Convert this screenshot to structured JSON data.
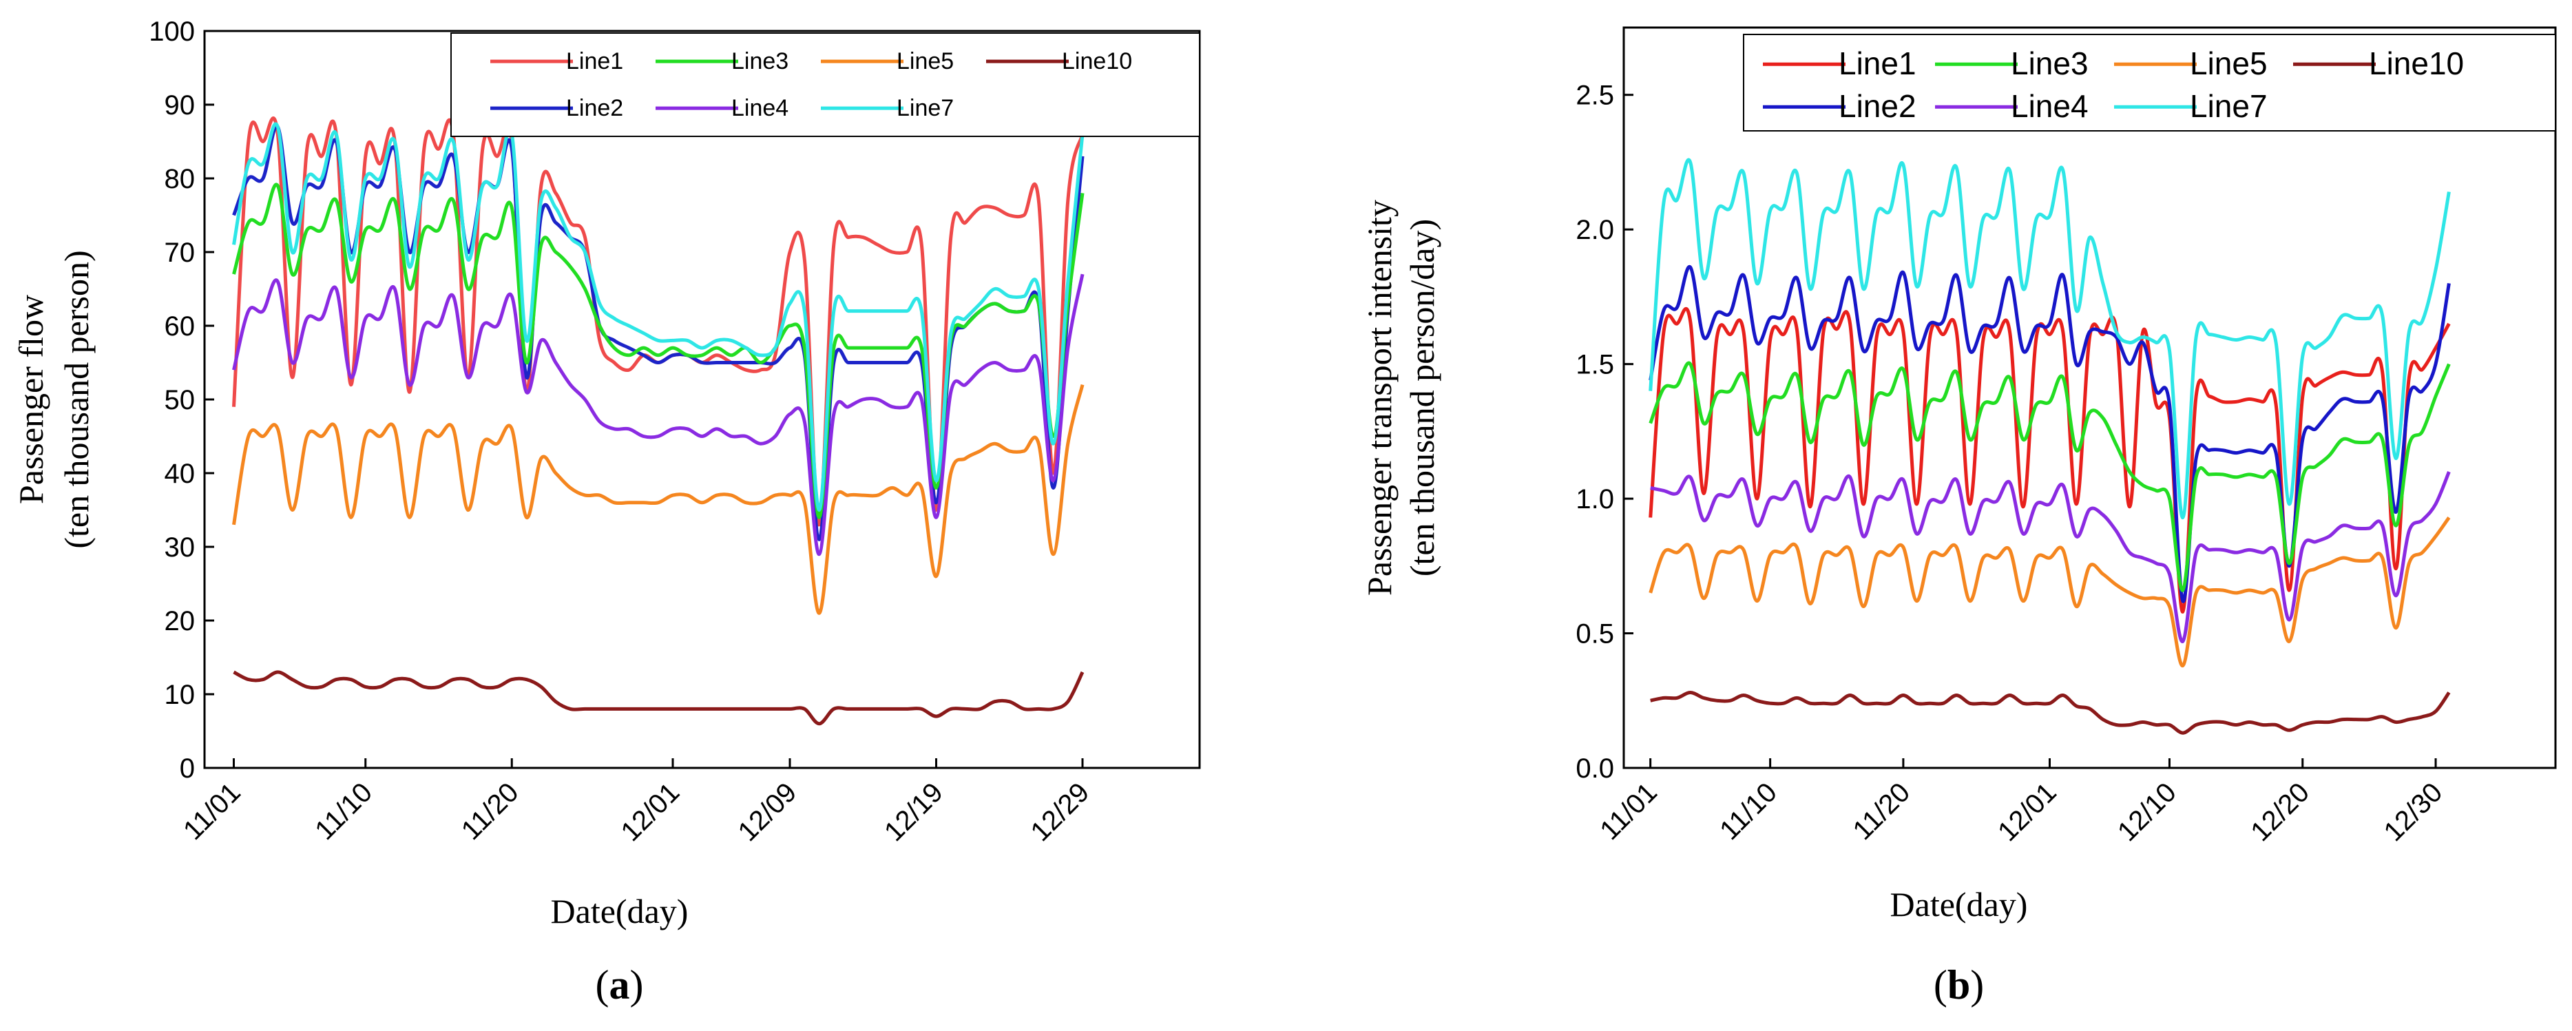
{
  "chart_data": [
    {
      "panel": "a",
      "panel_label": "(a)",
      "type": "line",
      "title": "",
      "xlabel": "Date(day)",
      "ylabel": [
        "Passenger flow",
        "(ten thousand person)"
      ],
      "ylim": [
        0,
        100
      ],
      "yticks": [
        0,
        10,
        20,
        30,
        40,
        50,
        60,
        70,
        80,
        90,
        100
      ],
      "xlim": [
        -2,
        66
      ],
      "xticks": [
        {
          "day": 0,
          "label": "11/01"
        },
        {
          "day": 9,
          "label": "11/10"
        },
        {
          "day": 19,
          "label": "11/20"
        },
        {
          "day": 30,
          "label": "12/01"
        },
        {
          "day": 38,
          "label": "12/09"
        },
        {
          "day": 48,
          "label": "12/19"
        },
        {
          "day": 58,
          "label": "12/29"
        }
      ],
      "legend_position": "top-right",
      "x": [
        0,
        1,
        2,
        3,
        4,
        5,
        6,
        7,
        8,
        9,
        10,
        11,
        12,
        13,
        14,
        15,
        16,
        17,
        18,
        19,
        20,
        21,
        22,
        23,
        24,
        25,
        26,
        27,
        28,
        29,
        30,
        31,
        32,
        33,
        34,
        35,
        36,
        37,
        38,
        39,
        40,
        41,
        42,
        43,
        44,
        45,
        46,
        47,
        48,
        49,
        50,
        51,
        52,
        53,
        54,
        55,
        56,
        57,
        58
      ],
      "series": [
        {
          "name": "Line1",
          "color": "#ef4a4a",
          "values": [
            49,
            85,
            85,
            86,
            53,
            84,
            83,
            86,
            52,
            83,
            82,
            85,
            51,
            84,
            84,
            86,
            53,
            84,
            83,
            85,
            51,
            79,
            78,
            74,
            72,
            58,
            55,
            54,
            56,
            55,
            56,
            56,
            55,
            56,
            55,
            54,
            54,
            56,
            70,
            69,
            33,
            71,
            72,
            72,
            71,
            70,
            70,
            71,
            35,
            72,
            74,
            76,
            76,
            75,
            75,
            77,
            40,
            77,
            86
          ]
        },
        {
          "name": "Line2",
          "color": "#1c24c8",
          "values": [
            75,
            80,
            80,
            87,
            74,
            79,
            79,
            85,
            70,
            79,
            79,
            84,
            70,
            79,
            79,
            83,
            70,
            79,
            79,
            84,
            53,
            75,
            74,
            72,
            70,
            60,
            58,
            57,
            56,
            55,
            56,
            56,
            55,
            55,
            55,
            55,
            55,
            55,
            57,
            56,
            31,
            55,
            55,
            55,
            55,
            55,
            55,
            55,
            36,
            57,
            60,
            62,
            63,
            62,
            62,
            63,
            38,
            62,
            83
          ]
        },
        {
          "name": "Line3",
          "color": "#22dd22",
          "values": [
            67,
            74,
            74,
            79,
            67,
            73,
            73,
            77,
            66,
            73,
            73,
            77,
            65,
            73,
            73,
            77,
            65,
            72,
            72,
            76,
            55,
            71,
            70,
            68,
            65,
            60,
            57,
            56,
            57,
            56,
            57,
            56,
            56,
            57,
            56,
            57,
            55,
            57,
            60,
            57,
            34,
            57,
            57,
            57,
            57,
            57,
            57,
            57,
            38,
            58,
            60,
            62,
            63,
            62,
            62,
            63,
            45,
            63,
            78
          ]
        },
        {
          "name": "Line4",
          "color": "#8a2be2",
          "values": [
            54,
            62,
            62,
            66,
            55,
            61,
            61,
            65,
            53,
            61,
            61,
            65,
            52,
            60,
            60,
            64,
            53,
            60,
            60,
            64,
            51,
            58,
            55,
            52,
            50,
            47,
            46,
            46,
            45,
            45,
            46,
            46,
            45,
            46,
            45,
            45,
            44,
            45,
            48,
            47,
            29,
            48,
            49,
            50,
            50,
            49,
            49,
            50,
            34,
            51,
            52,
            54,
            55,
            54,
            54,
            55,
            39,
            57,
            67
          ]
        },
        {
          "name": "Line5",
          "color": "#f5861f",
          "values": [
            33,
            45,
            45,
            46,
            35,
            45,
            45,
            46,
            34,
            45,
            45,
            46,
            34,
            45,
            45,
            46,
            35,
            44,
            44,
            46,
            34,
            42,
            40,
            38,
            37,
            37,
            36,
            36,
            36,
            36,
            37,
            37,
            36,
            37,
            37,
            36,
            36,
            37,
            37,
            36,
            21,
            36,
            37,
            37,
            37,
            38,
            37,
            38,
            26,
            40,
            42,
            43,
            44,
            43,
            43,
            44,
            29,
            44,
            52
          ]
        },
        {
          "name": "Line7",
          "color": "#2ee6e6",
          "values": [
            71,
            82,
            82,
            87,
            70,
            80,
            80,
            86,
            69,
            80,
            80,
            85,
            68,
            80,
            80,
            85,
            69,
            79,
            79,
            86,
            58,
            77,
            76,
            72,
            70,
            63,
            61,
            60,
            59,
            58,
            58,
            58,
            57,
            58,
            58,
            57,
            56,
            57,
            63,
            62,
            35,
            62,
            62,
            62,
            62,
            62,
            62,
            62,
            39,
            59,
            61,
            63,
            65,
            64,
            64,
            65,
            44,
            66,
            86
          ]
        },
        {
          "name": "Line10",
          "color": "#8b1a1a",
          "values": [
            13,
            12,
            12,
            13,
            12,
            11,
            11,
            12,
            12,
            11,
            11,
            12,
            12,
            11,
            11,
            12,
            12,
            11,
            11,
            12,
            12,
            11,
            9,
            8,
            8,
            8,
            8,
            8,
            8,
            8,
            8,
            8,
            8,
            8,
            8,
            8,
            8,
            8,
            8,
            8,
            6,
            8,
            8,
            8,
            8,
            8,
            8,
            8,
            7,
            8,
            8,
            8,
            9,
            9,
            8,
            8,
            8,
            9,
            13
          ]
        }
      ],
      "legend_rows": [
        [
          "Line1",
          "Line3",
          "Line5",
          "Line10"
        ],
        [
          "Line2",
          "Line4",
          "Line7"
        ]
      ]
    },
    {
      "panel": "b",
      "panel_label": "(b)",
      "type": "line",
      "title": "",
      "xlabel": "Date(day)",
      "ylabel": [
        "Passenger transport intensity",
        "(ten thousand person/day)"
      ],
      "ylim": [
        0.0,
        2.75
      ],
      "yticks": [
        0.0,
        0.5,
        1.0,
        1.5,
        2.0,
        2.5
      ],
      "xlim": [
        -2,
        68
      ],
      "xticks": [
        {
          "day": 0,
          "label": "11/01"
        },
        {
          "day": 9,
          "label": "11/10"
        },
        {
          "day": 19,
          "label": "11/20"
        },
        {
          "day": 30,
          "label": "12/01"
        },
        {
          "day": 39,
          "label": "12/10"
        },
        {
          "day": 49,
          "label": "12/20"
        },
        {
          "day": 59,
          "label": "12/30"
        }
      ],
      "legend_position": "top-right",
      "x": [
        0,
        1,
        2,
        3,
        4,
        5,
        6,
        7,
        8,
        9,
        10,
        11,
        12,
        13,
        14,
        15,
        16,
        17,
        18,
        19,
        20,
        21,
        22,
        23,
        24,
        25,
        26,
        27,
        28,
        29,
        30,
        31,
        32,
        33,
        34,
        35,
        36,
        37,
        38,
        39,
        40,
        41,
        42,
        43,
        44,
        45,
        46,
        47,
        48,
        49,
        50,
        51,
        52,
        53,
        54,
        55,
        56,
        57,
        58,
        59,
        60
      ],
      "series": [
        {
          "name": "Line1",
          "color": "#e8201c",
          "values": [
            0.93,
            1.62,
            1.65,
            1.66,
            1.02,
            1.6,
            1.61,
            1.62,
            1.0,
            1.59,
            1.61,
            1.63,
            0.97,
            1.62,
            1.63,
            1.65,
            0.98,
            1.6,
            1.61,
            1.62,
            0.98,
            1.6,
            1.61,
            1.62,
            0.98,
            1.59,
            1.6,
            1.62,
            0.97,
            1.6,
            1.61,
            1.62,
            0.98,
            1.6,
            1.61,
            1.63,
            0.97,
            1.62,
            1.35,
            1.3,
            0.58,
            1.38,
            1.38,
            1.36,
            1.36,
            1.37,
            1.36,
            1.35,
            0.66,
            1.38,
            1.42,
            1.45,
            1.47,
            1.46,
            1.46,
            1.47,
            0.74,
            1.45,
            1.48,
            1.56,
            1.65
          ]
        },
        {
          "name": "Line2",
          "color": "#1616c8",
          "values": [
            1.44,
            1.7,
            1.71,
            1.86,
            1.6,
            1.69,
            1.69,
            1.83,
            1.58,
            1.67,
            1.68,
            1.82,
            1.56,
            1.66,
            1.67,
            1.82,
            1.55,
            1.66,
            1.67,
            1.84,
            1.56,
            1.65,
            1.66,
            1.83,
            1.55,
            1.64,
            1.65,
            1.82,
            1.55,
            1.64,
            1.65,
            1.83,
            1.5,
            1.62,
            1.62,
            1.6,
            1.5,
            1.58,
            1.4,
            1.35,
            0.62,
            1.15,
            1.18,
            1.18,
            1.17,
            1.18,
            1.17,
            1.17,
            0.75,
            1.22,
            1.26,
            1.32,
            1.37,
            1.36,
            1.36,
            1.37,
            0.95,
            1.38,
            1.4,
            1.5,
            1.8
          ]
        },
        {
          "name": "Line3",
          "color": "#22dd22",
          "values": [
            1.28,
            1.41,
            1.42,
            1.5,
            1.28,
            1.39,
            1.4,
            1.46,
            1.24,
            1.37,
            1.38,
            1.46,
            1.21,
            1.37,
            1.38,
            1.47,
            1.2,
            1.38,
            1.39,
            1.48,
            1.22,
            1.36,
            1.37,
            1.47,
            1.22,
            1.35,
            1.36,
            1.45,
            1.22,
            1.35,
            1.36,
            1.45,
            1.18,
            1.32,
            1.3,
            1.2,
            1.1,
            1.05,
            1.03,
            1.0,
            0.66,
            1.08,
            1.09,
            1.09,
            1.08,
            1.09,
            1.08,
            1.08,
            0.76,
            1.08,
            1.12,
            1.16,
            1.22,
            1.21,
            1.21,
            1.22,
            0.9,
            1.2,
            1.25,
            1.38,
            1.5
          ]
        },
        {
          "name": "Line4",
          "color": "#8a2be2",
          "values": [
            1.04,
            1.03,
            1.02,
            1.08,
            0.92,
            1.01,
            1.01,
            1.07,
            0.9,
            1.0,
            1.0,
            1.06,
            0.88,
            1.0,
            1.0,
            1.08,
            0.86,
            1.0,
            1.0,
            1.07,
            0.87,
            0.99,
            0.99,
            1.07,
            0.87,
            0.99,
            0.99,
            1.06,
            0.87,
            0.98,
            0.98,
            1.05,
            0.86,
            0.96,
            0.94,
            0.88,
            0.8,
            0.78,
            0.76,
            0.72,
            0.47,
            0.8,
            0.81,
            0.81,
            0.8,
            0.81,
            0.8,
            0.8,
            0.55,
            0.82,
            0.84,
            0.86,
            0.9,
            0.89,
            0.89,
            0.9,
            0.64,
            0.88,
            0.92,
            0.98,
            1.1
          ]
        },
        {
          "name": "Line5",
          "color": "#f5861f",
          "values": [
            0.65,
            0.8,
            0.8,
            0.82,
            0.63,
            0.79,
            0.8,
            0.81,
            0.62,
            0.79,
            0.8,
            0.82,
            0.61,
            0.79,
            0.79,
            0.81,
            0.6,
            0.79,
            0.79,
            0.82,
            0.62,
            0.79,
            0.79,
            0.82,
            0.62,
            0.78,
            0.78,
            0.81,
            0.62,
            0.78,
            0.78,
            0.81,
            0.6,
            0.75,
            0.72,
            0.68,
            0.65,
            0.63,
            0.63,
            0.6,
            0.38,
            0.65,
            0.66,
            0.66,
            0.65,
            0.66,
            0.65,
            0.65,
            0.47,
            0.7,
            0.74,
            0.76,
            0.78,
            0.77,
            0.77,
            0.78,
            0.52,
            0.76,
            0.8,
            0.86,
            0.93
          ]
        },
        {
          "name": "Line7",
          "color": "#2ee6e6",
          "values": [
            1.4,
            2.1,
            2.11,
            2.25,
            1.82,
            2.07,
            2.08,
            2.21,
            1.8,
            2.07,
            2.08,
            2.21,
            1.78,
            2.06,
            2.07,
            2.21,
            1.78,
            2.06,
            2.07,
            2.24,
            1.79,
            2.05,
            2.06,
            2.23,
            1.79,
            2.04,
            2.05,
            2.22,
            1.78,
            2.04,
            2.05,
            2.22,
            1.7,
            1.97,
            1.8,
            1.62,
            1.58,
            1.6,
            1.58,
            1.55,
            0.93,
            1.6,
            1.61,
            1.6,
            1.59,
            1.6,
            1.59,
            1.58,
            0.98,
            1.53,
            1.56,
            1.6,
            1.68,
            1.67,
            1.67,
            1.68,
            1.15,
            1.62,
            1.66,
            1.85,
            2.14
          ]
        },
        {
          "name": "Line10",
          "color": "#8b1a1a",
          "values": [
            0.25,
            0.26,
            0.26,
            0.28,
            0.26,
            0.25,
            0.25,
            0.27,
            0.25,
            0.24,
            0.24,
            0.26,
            0.24,
            0.24,
            0.24,
            0.27,
            0.24,
            0.24,
            0.24,
            0.27,
            0.24,
            0.24,
            0.24,
            0.27,
            0.24,
            0.24,
            0.24,
            0.27,
            0.24,
            0.24,
            0.24,
            0.27,
            0.23,
            0.22,
            0.18,
            0.16,
            0.16,
            0.17,
            0.16,
            0.16,
            0.13,
            0.16,
            0.17,
            0.17,
            0.16,
            0.17,
            0.16,
            0.16,
            0.14,
            0.16,
            0.17,
            0.17,
            0.18,
            0.18,
            0.18,
            0.19,
            0.17,
            0.18,
            0.19,
            0.21,
            0.28
          ]
        }
      ],
      "legend_rows": [
        [
          "Line1",
          "Line3",
          "Line5",
          "Line10"
        ],
        [
          "Line2",
          "Line4",
          "Line7"
        ]
      ]
    }
  ]
}
